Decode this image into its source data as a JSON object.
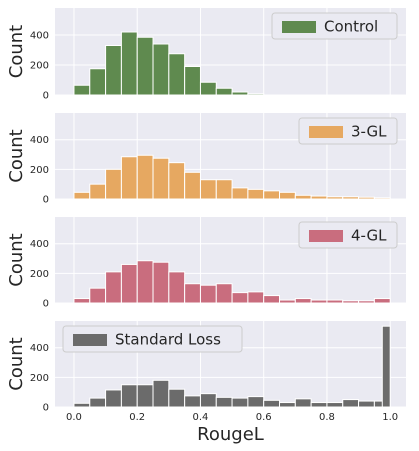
{
  "chart_data": [
    {
      "type": "bar",
      "subtype": "histogram",
      "series": [
        {
          "name": "Control",
          "color": "#5f8a4f"
        }
      ],
      "bin_edges": [
        0.0,
        0.05,
        0.1,
        0.15,
        0.2,
        0.25,
        0.3,
        0.35,
        0.4,
        0.45,
        0.5,
        0.55,
        0.6,
        0.65,
        0.7,
        0.75,
        0.8,
        0.85,
        0.9,
        0.95,
        1.0
      ],
      "values": [
        65,
        175,
        330,
        420,
        385,
        340,
        275,
        190,
        85,
        45,
        20,
        8,
        0,
        0,
        0,
        0,
        0,
        0,
        0,
        0
      ],
      "ylabel": "Count",
      "yticks": [
        0,
        200,
        400
      ],
      "ylim": [
        0,
        580
      ],
      "legend_position": "top-right",
      "grid": true
    },
    {
      "type": "bar",
      "subtype": "histogram",
      "series": [
        {
          "name": "3-GL",
          "color": "#e6a861"
        }
      ],
      "bin_edges": [
        0.0,
        0.05,
        0.1,
        0.15,
        0.2,
        0.25,
        0.3,
        0.35,
        0.4,
        0.45,
        0.5,
        0.55,
        0.6,
        0.65,
        0.7,
        0.75,
        0.8,
        0.85,
        0.9,
        0.95,
        1.0
      ],
      "values": [
        45,
        100,
        200,
        285,
        295,
        275,
        245,
        180,
        130,
        130,
        75,
        65,
        55,
        45,
        25,
        20,
        15,
        15,
        12,
        8
      ],
      "ylabel": "Count",
      "yticks": [
        0,
        200,
        400
      ],
      "ylim": [
        0,
        580
      ],
      "legend_position": "top-right",
      "grid": true
    },
    {
      "type": "bar",
      "subtype": "histogram",
      "series": [
        {
          "name": "4-GL",
          "color": "#c96d7e"
        }
      ],
      "bin_edges": [
        0.0,
        0.05,
        0.1,
        0.15,
        0.2,
        0.25,
        0.3,
        0.35,
        0.4,
        0.45,
        0.5,
        0.55,
        0.6,
        0.65,
        0.7,
        0.75,
        0.8,
        0.85,
        0.9,
        0.95,
        1.0
      ],
      "values": [
        30,
        100,
        210,
        260,
        285,
        275,
        210,
        130,
        120,
        130,
        70,
        75,
        50,
        20,
        30,
        20,
        20,
        15,
        15,
        30
      ],
      "ylabel": "Count",
      "yticks": [
        0,
        200,
        400
      ],
      "ylim": [
        0,
        580
      ],
      "legend_position": "top-right",
      "grid": true
    },
    {
      "type": "bar",
      "subtype": "histogram",
      "series": [
        {
          "name": "Standard Loss",
          "color": "#6b6b6b"
        }
      ],
      "bin_edges": [
        0.0,
        0.05,
        0.1,
        0.15,
        0.2,
        0.25,
        0.3,
        0.35,
        0.4,
        0.45,
        0.5,
        0.55,
        0.6,
        0.65,
        0.7,
        0.75,
        0.8,
        0.85,
        0.9,
        0.95,
        1.0
      ],
      "values": [
        25,
        60,
        115,
        150,
        150,
        180,
        120,
        75,
        90,
        65,
        60,
        70,
        45,
        30,
        55,
        30,
        30,
        50,
        40,
        40
      ],
      "last_bar": {
        "x_start": 0.975,
        "x_end": 1.0,
        "value": 545
      },
      "ylabel": "Count",
      "xlabel": "RougeL",
      "xticks": [
        "0.0",
        "0.2",
        "0.4",
        "0.6",
        "0.8",
        "1.0"
      ],
      "yticks": [
        0,
        200,
        400
      ],
      "ylim": [
        0,
        580
      ],
      "legend_position": "top-left",
      "grid": true
    }
  ],
  "colors": {
    "panel_bg": "#eaeaf2",
    "grid": "#ffffff",
    "bar_edge": "#ffffff"
  }
}
